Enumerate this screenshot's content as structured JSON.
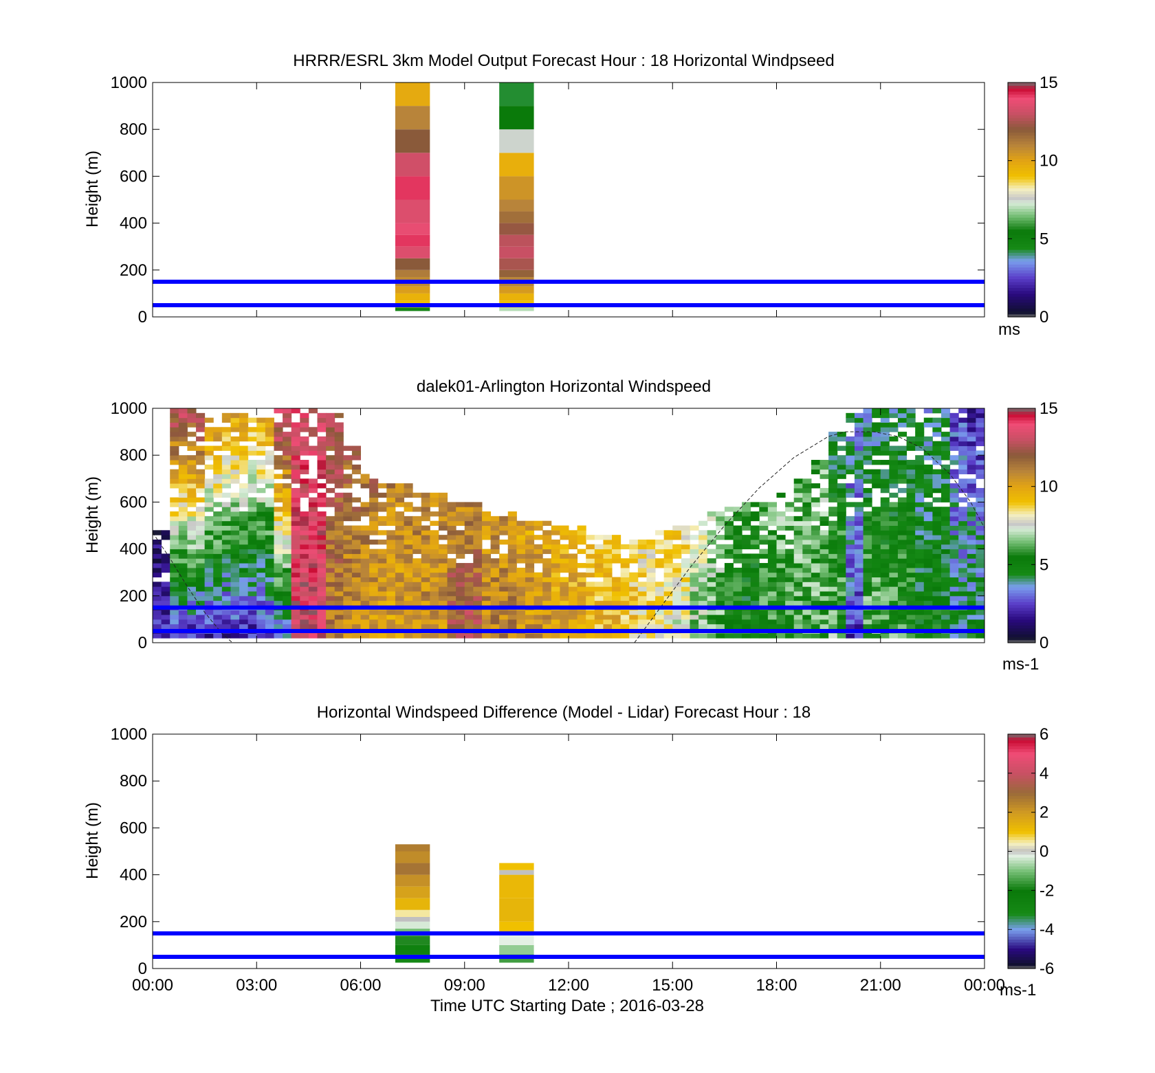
{
  "figure": {
    "xlabel": "Time UTC  Starting Date ; 2016-03-28",
    "x_ticks": [
      "00:00",
      "03:00",
      "06:00",
      "09:00",
      "12:00",
      "15:00",
      "18:00",
      "21:00",
      "00:00"
    ],
    "guide_lines": {
      "heights_m": [
        50,
        150
      ],
      "color": "#0000ff"
    }
  },
  "chart_data": [
    {
      "type": "heatmap",
      "title": "HRRR/ESRL 3km Model Output   Forecast Hour : 18 Horizontal Windpseed",
      "ylabel": "Height (m)",
      "xlim_hours": [
        0,
        24
      ],
      "ylim": [
        0,
        1000
      ],
      "y_ticks": [
        "0",
        "200",
        "400",
        "600",
        "800",
        "1000"
      ],
      "colorbar": {
        "ticks": [
          "0",
          "5",
          "10",
          "15"
        ],
        "range": [
          0,
          15
        ],
        "unit": "ms"
      },
      "columns": [
        {
          "x_hours": [
            7.0,
            8.0
          ],
          "cells": [
            [
              25,
              40,
              4.8
            ],
            [
              40,
              70,
              9.0
            ],
            [
              70,
              100,
              9.5
            ],
            [
              100,
              130,
              10.2
            ],
            [
              130,
              170,
              10.8
            ],
            [
              170,
              200,
              11.2
            ],
            [
              200,
              250,
              12.0
            ],
            [
              250,
              300,
              13.5
            ],
            [
              300,
              350,
              14.2
            ],
            [
              350,
              400,
              13.8
            ],
            [
              400,
              500,
              13.5
            ],
            [
              500,
              600,
              14.2
            ],
            [
              600,
              700,
              13.2
            ],
            [
              700,
              800,
              12.0
            ],
            [
              800,
              900,
              11.0
            ],
            [
              900,
              1000,
              9.8
            ]
          ]
        },
        {
          "x_hours": [
            10.0,
            11.0
          ],
          "cells": [
            [
              25,
              40,
              7.0
            ],
            [
              40,
              70,
              9.0
            ],
            [
              70,
              100,
              9.5
            ],
            [
              100,
              130,
              10.3
            ],
            [
              130,
              170,
              11.0
            ],
            [
              170,
              200,
              11.8
            ],
            [
              200,
              250,
              12.5
            ],
            [
              250,
              300,
              13.0
            ],
            [
              300,
              350,
              12.8
            ],
            [
              350,
              400,
              12.2
            ],
            [
              400,
              450,
              11.5
            ],
            [
              450,
              500,
              11.0
            ],
            [
              500,
              600,
              10.5
            ],
            [
              600,
              700,
              9.6
            ],
            [
              700,
              800,
              7.5
            ],
            [
              800,
              900,
              5.5
            ],
            [
              900,
              1000,
              4.3
            ]
          ]
        }
      ]
    },
    {
      "type": "heatmap",
      "title": "dalek01-Arlington  Horizontal Windspeed",
      "ylabel": "Height (m)",
      "xlim_hours": [
        0,
        24
      ],
      "ylim": [
        0,
        1000
      ],
      "y_ticks": [
        "0",
        "200",
        "400",
        "600",
        "800",
        "1000"
      ],
      "colorbar": {
        "ticks": [
          "0",
          "5",
          "10",
          "15"
        ],
        "range": [
          0,
          15
        ],
        "unit": "ms-1"
      },
      "profile_segments": [
        [
          0.0,
          470,
          2.0,
          1.0
        ],
        [
          0.5,
          1000,
          2.0,
          13.0
        ],
        [
          1.5,
          950,
          2.0,
          10.5
        ],
        [
          2.0,
          980,
          2.0,
          10.0
        ],
        [
          3.5,
          1000,
          3.0,
          14.0
        ],
        [
          4.0,
          1000,
          14.0,
          13.5
        ],
        [
          5.0,
          980,
          11.0,
          12.5
        ],
        [
          5.5,
          840,
          10.5,
          12.0
        ],
        [
          6.0,
          720,
          10.0,
          11.5
        ],
        [
          6.5,
          680,
          10.0,
          11.0
        ],
        [
          7.5,
          630,
          10.5,
          10.8
        ],
        [
          8.5,
          600,
          12.5,
          10.8
        ],
        [
          9.5,
          560,
          11.0,
          10.5
        ],
        [
          10.5,
          510,
          10.5,
          10.0
        ],
        [
          11.5,
          500,
          10.0,
          9.5
        ],
        [
          12.5,
          460,
          9.5,
          9.0
        ],
        [
          13.5,
          440,
          9.0,
          9.0
        ],
        [
          14.0,
          440,
          8.5,
          8.5
        ],
        [
          14.5,
          470,
          8.0,
          8.5
        ],
        [
          15.0,
          500,
          7.5,
          8.8
        ],
        [
          15.5,
          520,
          6.5,
          8.0
        ],
        [
          16.0,
          550,
          6.0,
          7.0
        ],
        [
          16.5,
          570,
          5.0,
          6.0
        ],
        [
          17.0,
          590,
          5.0,
          5.5
        ],
        [
          17.5,
          600,
          5.5,
          6.0
        ],
        [
          18.0,
          640,
          5.5,
          6.5
        ],
        [
          18.5,
          700,
          6.0,
          6.5
        ],
        [
          19.0,
          780,
          6.0,
          6.5
        ],
        [
          19.5,
          900,
          6.5,
          4.5
        ],
        [
          20.0,
          980,
          2.5,
          4.0
        ],
        [
          20.5,
          1000,
          6.5,
          4.0
        ],
        [
          21.0,
          1000,
          6.0,
          4.5
        ],
        [
          21.5,
          1000,
          6.0,
          4.5
        ],
        [
          22.0,
          1000,
          5.0,
          4.0
        ],
        [
          22.5,
          1000,
          5.0,
          4.5
        ],
        [
          23.0,
          1000,
          4.5,
          2.5
        ],
        [
          23.5,
          1000,
          5.0,
          2.0
        ]
      ],
      "dashed_curve": {
        "points": [
          [
            0.0,
            470
          ],
          [
            0.5,
            360
          ],
          [
            1.0,
            240
          ],
          [
            1.5,
            130
          ],
          [
            2.0,
            40
          ],
          [
            2.3,
            0
          ],
          [
            13.9,
            0
          ],
          [
            14.5,
            120
          ],
          [
            15.5,
            320
          ],
          [
            16.5,
            500
          ],
          [
            17.5,
            660
          ],
          [
            18.5,
            790
          ],
          [
            19.5,
            880
          ],
          [
            20.0,
            900
          ],
          [
            20.8,
            900
          ],
          [
            21.5,
            880
          ],
          [
            22.2,
            830
          ],
          [
            23.0,
            720
          ],
          [
            23.6,
            600
          ],
          [
            24.0,
            490
          ]
        ]
      }
    },
    {
      "type": "heatmap",
      "title": "Horizontal Windspeed Difference (Model - Lidar) Forecast Hour : 18",
      "ylabel": "Height (m)",
      "xlim_hours": [
        0,
        24
      ],
      "ylim": [
        0,
        1000
      ],
      "y_ticks": [
        "0",
        "200",
        "400",
        "600",
        "800",
        "1000"
      ],
      "colorbar": {
        "ticks": [
          "-6",
          "-4",
          "-2",
          "0",
          "2",
          "4",
          "6"
        ],
        "range": [
          -6,
          6
        ],
        "unit": "ms-1"
      },
      "columns": [
        {
          "x_hours": [
            7.0,
            8.0
          ],
          "cells": [
            [
              25,
              60,
              -3.0
            ],
            [
              60,
              100,
              -2.5
            ],
            [
              100,
              140,
              -1.8
            ],
            [
              140,
              170,
              -1.0
            ],
            [
              170,
              200,
              -0.3
            ],
            [
              200,
              220,
              0.0
            ],
            [
              220,
              250,
              0.5
            ],
            [
              250,
              300,
              1.3
            ],
            [
              300,
              350,
              1.8
            ],
            [
              350,
              400,
              2.2
            ],
            [
              400,
              450,
              2.8
            ],
            [
              450,
              500,
              2.3
            ],
            [
              500,
              530,
              2.6
            ]
          ]
        },
        {
          "x_hours": [
            10.0,
            11.0
          ],
          "cells": [
            [
              25,
              60,
              -1.5
            ],
            [
              60,
              100,
              -0.8
            ],
            [
              100,
              150,
              -0.2
            ],
            [
              150,
              200,
              1.0
            ],
            [
              200,
              300,
              1.3
            ],
            [
              300,
              400,
              1.2
            ],
            [
              400,
              420,
              0.0
            ],
            [
              420,
              450,
              1.0
            ]
          ]
        }
      ]
    }
  ]
}
